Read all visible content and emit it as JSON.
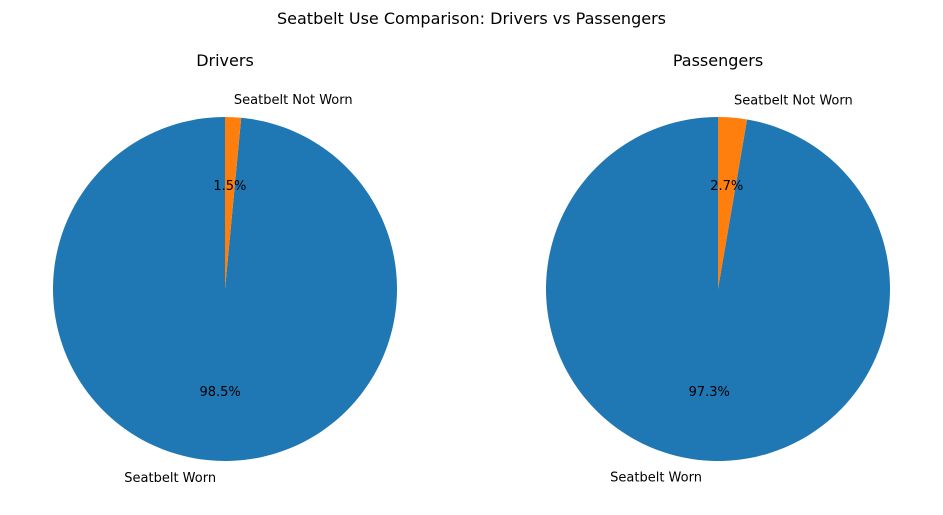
{
  "chart_data": {
    "title": "Seatbelt Use Comparison: Drivers vs Passengers",
    "charts": [
      {
        "type": "pie",
        "title": "Drivers",
        "categories": [
          "Seatbelt Worn",
          "Seatbelt Not Worn"
        ],
        "values": [
          98.5,
          1.5
        ],
        "percent_labels": [
          "98.5%",
          "1.5%"
        ],
        "colors": [
          "#1f77b4",
          "#ff7f0e"
        ],
        "start_angle_deg": 90,
        "direction": "counterclockwise"
      },
      {
        "type": "pie",
        "title": "Passengers",
        "categories": [
          "Seatbelt Worn",
          "Seatbelt Not Worn"
        ],
        "values": [
          97.3,
          2.7
        ],
        "percent_labels": [
          "97.3%",
          "2.7%"
        ],
        "colors": [
          "#1f77b4",
          "#ff7f0e"
        ],
        "start_angle_deg": 90,
        "direction": "counterclockwise"
      }
    ]
  }
}
